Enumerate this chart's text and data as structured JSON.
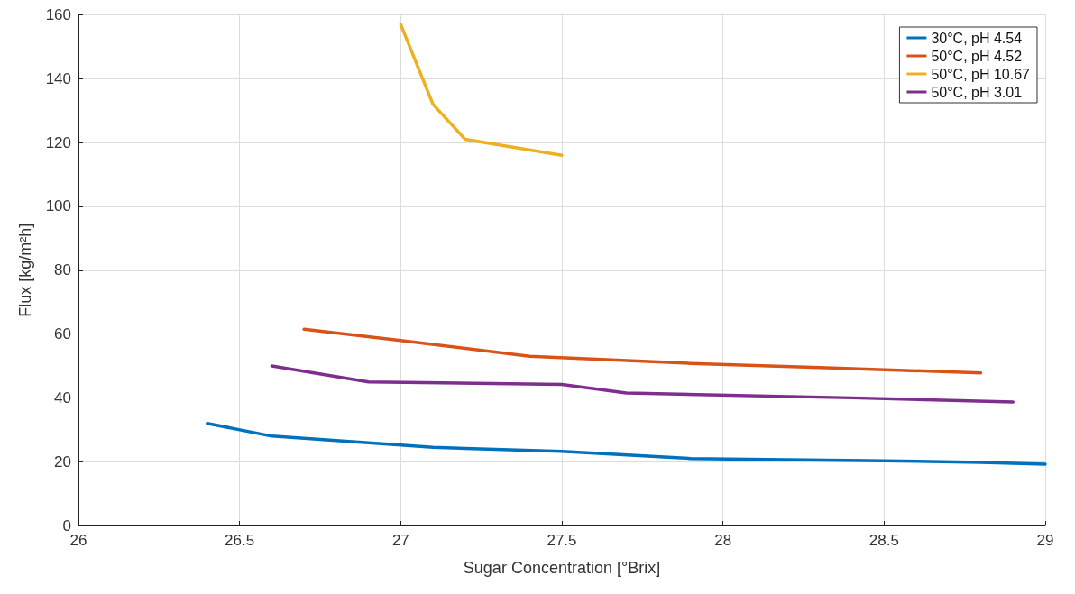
{
  "chart_data": {
    "type": "line",
    "xlabel": "Sugar Concentration [°Brix]",
    "ylabel": "Flux [kg/m²h]",
    "xlim": [
      26,
      29
    ],
    "xticks": [
      26,
      26.5,
      27,
      27.5,
      28,
      28.5,
      29
    ],
    "ylim": [
      0,
      160
    ],
    "yticks": [
      0,
      20,
      40,
      60,
      80,
      100,
      120,
      140,
      160
    ],
    "grid": true,
    "legend": "top right",
    "marker": "none",
    "line_style": "solid",
    "series": [
      {
        "name": "30°C, pH 4.54",
        "color": "#0072bd",
        "x": [
          26.4,
          26.6,
          27.1,
          27.5,
          27.9,
          28.5,
          28.8,
          29
        ],
        "values": [
          32,
          28,
          24.5,
          23.2,
          21,
          20.3,
          19.8,
          19.2
        ]
      },
      {
        "name": "50°C, pH 4.52",
        "color": "#d95319",
        "x": [
          26.7,
          27,
          27.4,
          27.9,
          28.3,
          28.8
        ],
        "values": [
          61.5,
          58,
          53,
          50.8,
          49.5,
          47.8
        ]
      },
      {
        "name": "50°C, pH 10.67",
        "color": "#edb120",
        "x": [
          27,
          27.1,
          27.2,
          27.5
        ],
        "values": [
          157,
          132,
          121,
          116
        ]
      },
      {
        "name": "50°C, pH 3.01",
        "color": "#7e2f8e",
        "x": [
          26.6,
          26.9,
          27.5,
          27.7,
          28.4,
          28.9
        ],
        "values": [
          50,
          45,
          44.2,
          41.5,
          40,
          38.7
        ]
      }
    ]
  }
}
